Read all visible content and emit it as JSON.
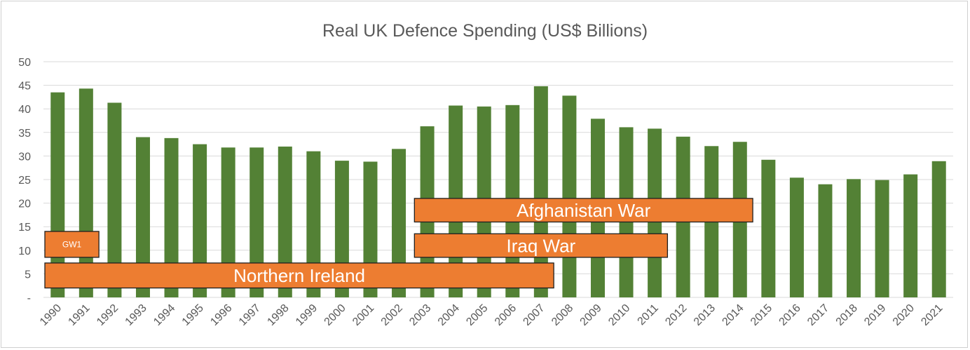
{
  "chart_data": {
    "type": "bar",
    "title": "Real UK Defence Spending (US$ Billions)",
    "xlabel": "",
    "ylabel": "",
    "ylim": [
      0,
      50
    ],
    "yticks": [
      "-",
      "5",
      "10",
      "15",
      "20",
      "25",
      "30",
      "35",
      "40",
      "45",
      "50"
    ],
    "categories": [
      "1990",
      "1991",
      "1992",
      "1993",
      "1994",
      "1995",
      "1996",
      "1997",
      "1998",
      "1999",
      "2000",
      "2001",
      "2002",
      "2003",
      "2004",
      "2005",
      "2006",
      "2007",
      "2008",
      "2009",
      "2010",
      "2011",
      "2012",
      "2013",
      "2014",
      "2015",
      "2016",
      "2017",
      "2018",
      "2019",
      "2020",
      "2021"
    ],
    "values": [
      43.5,
      44.3,
      41.3,
      34.0,
      33.8,
      32.5,
      31.8,
      31.8,
      32.0,
      31.0,
      29.0,
      28.8,
      31.5,
      36.3,
      40.7,
      40.5,
      40.8,
      44.8,
      42.8,
      37.9,
      36.1,
      35.8,
      34.1,
      32.1,
      33.0,
      29.2,
      25.4,
      24.0,
      25.1,
      24.9,
      26.1,
      28.9
    ],
    "grid": true,
    "legend": "none",
    "colors": {
      "bar": "#538135",
      "annotation": "#ed7d31",
      "annotation_text": "#ffffff"
    },
    "annotations": [
      {
        "label": "Afghanistan War",
        "from": "2003",
        "to": "2014",
        "y_low": 16,
        "y_high": 21
      },
      {
        "label": "Iraq War",
        "from": "2003",
        "to": "2011",
        "y_low": 8.5,
        "y_high": 13.5
      },
      {
        "label": "GW1",
        "from": "1990",
        "to": "1991",
        "y_low": 8.5,
        "y_high": 14
      },
      {
        "label": "Northern Ireland",
        "from": "1990",
        "to": "2007",
        "y_low": 2,
        "y_high": 7.3
      }
    ]
  }
}
